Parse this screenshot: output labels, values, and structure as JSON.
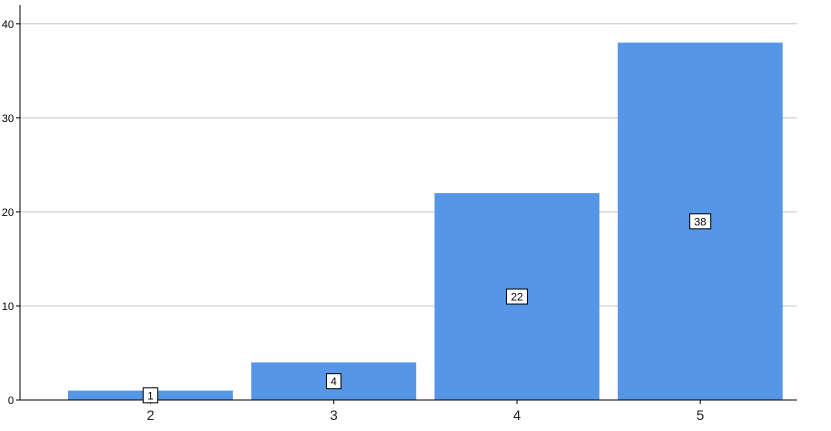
{
  "chart_data": {
    "type": "bar",
    "categories": [
      "2",
      "3",
      "4",
      "5"
    ],
    "values": [
      1,
      4,
      22,
      38
    ],
    "data_labels": [
      "1",
      "4",
      "22",
      "38"
    ],
    "yticks": [
      0,
      10,
      20,
      30,
      40
    ],
    "ylim": [
      0,
      42
    ],
    "grid": true,
    "bar_color": "#5596e6",
    "title": "",
    "xlabel": "",
    "ylabel": ""
  }
}
